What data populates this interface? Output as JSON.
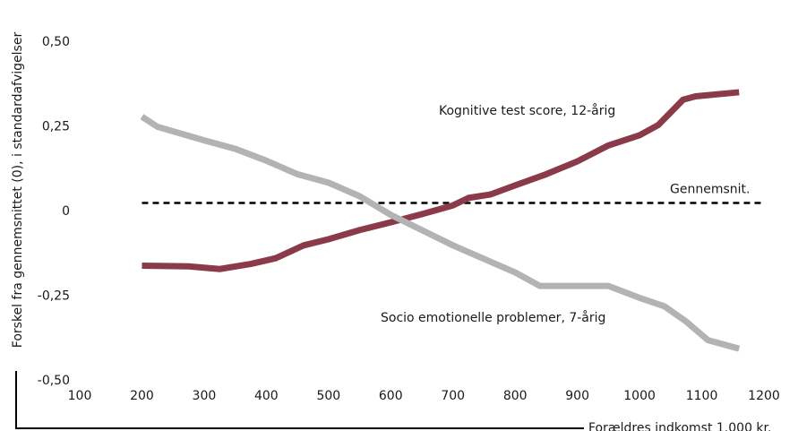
{
  "chart_data": {
    "type": "line",
    "y_label": "Forskel fra gennemsnittet (0), i standardafvigelser",
    "x_label": "Forældres indkomst 1.000 kr.",
    "xlim": [
      100,
      1200
    ],
    "xticks": [
      100,
      200,
      300,
      400,
      500,
      600,
      700,
      800,
      900,
      1000,
      1100,
      1200
    ],
    "ylim": [
      -0.5,
      0.5
    ],
    "yticks": [
      {
        "value": 0.5,
        "label": "0,50"
      },
      {
        "value": 0.25,
        "label": "0,25"
      },
      0,
      {
        "value": -0.25,
        "label": "-0,25"
      },
      {
        "value": -0.5,
        "label": "-0,50"
      }
    ],
    "reference_line": {
      "name": "Gennemsnit.",
      "value": 0.025
    },
    "series": [
      {
        "name": "Kognitive test score, 12-årig",
        "color": "#8b3a4a",
        "x": [
          200,
          275,
          325,
          375,
          415,
          460,
          500,
          550,
          600,
          650,
          700,
          725,
          760,
          800,
          850,
          900,
          950,
          1000,
          1030,
          1070,
          1090,
          1160
        ],
        "values": [
          -0.16,
          -0.162,
          -0.17,
          -0.155,
          -0.138,
          -0.1,
          -0.082,
          -0.055,
          -0.032,
          -0.008,
          0.018,
          0.04,
          0.05,
          0.077,
          0.11,
          0.148,
          0.195,
          0.225,
          0.255,
          0.33,
          0.34,
          0.352
        ]
      },
      {
        "name": "Socio emotionelle problemer, 7-årig",
        "color": "#b3b3b5",
        "x": [
          200,
          225,
          300,
          350,
          400,
          450,
          500,
          550,
          600,
          650,
          700,
          750,
          800,
          840,
          950,
          1000,
          1040,
          1075,
          1110,
          1160
        ],
        "values": [
          0.28,
          0.25,
          0.21,
          0.185,
          0.15,
          0.11,
          0.085,
          0.045,
          -0.01,
          -0.055,
          -0.1,
          -0.14,
          -0.18,
          -0.22,
          -0.22,
          -0.255,
          -0.28,
          -0.325,
          -0.38,
          -0.405
        ]
      }
    ]
  }
}
